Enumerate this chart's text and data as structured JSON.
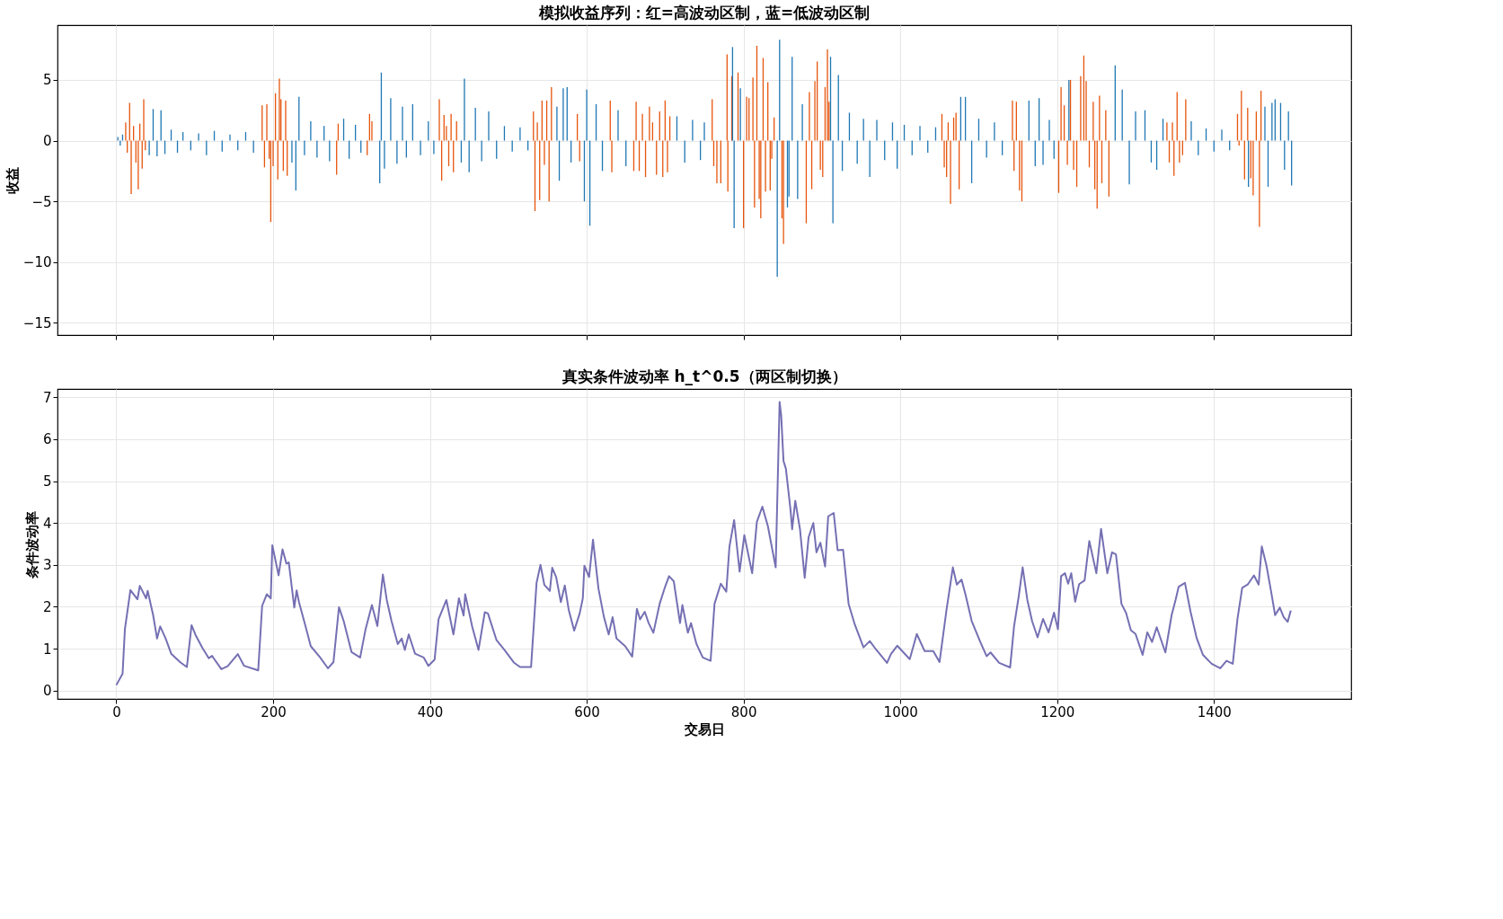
{
  "chart_data": [
    {
      "type": "bar",
      "title": "模拟收益序列：红=高波动区制，蓝=低波动区制",
      "ylabel": "收益",
      "xlim": [
        -75,
        1575
      ],
      "xticks": [
        0,
        200,
        400,
        600,
        800,
        1000,
        1200,
        1400
      ],
      "ylim": [
        -16,
        9.5
      ],
      "yticks": [
        -15,
        -10,
        -5,
        0,
        5
      ],
      "grid": true,
      "legend": false,
      "tick_labels": "y",
      "series": [
        {
          "color": "#e6550d",
          "x": [
            12,
            14,
            17,
            19,
            22,
            25,
            28,
            30,
            33,
            35,
            37,
            186,
            189,
            192,
            195,
            197,
            200,
            203,
            206,
            208,
            210,
            213,
            216,
            218,
            281,
            283,
            320,
            323,
            326,
            412,
            415,
            418,
            421,
            424,
            427,
            430,
            434,
            532,
            534,
            537,
            540,
            543,
            546,
            549,
            552,
            555,
            588,
            591,
            630,
            632,
            660,
            663,
            667,
            671,
            675,
            680,
            684,
            689,
            693,
            697,
            700,
            703,
            706,
            760,
            762,
            766,
            771,
            779,
            780,
            785,
            793,
            800,
            804,
            807,
            812,
            814,
            817,
            820,
            822,
            825,
            828,
            831,
            834,
            836,
            839,
            849,
            851,
            880,
            884,
            887,
            891,
            894,
            898,
            901,
            904,
            907,
            909,
            1053,
            1056,
            1059,
            1061,
            1064,
            1068,
            1071,
            1075,
            1143,
            1145,
            1148,
            1152,
            1155,
            1202,
            1205,
            1209,
            1213,
            1217,
            1221,
            1225,
            1230,
            1234,
            1237,
            1241,
            1246,
            1248,
            1251,
            1254,
            1257,
            1262,
            1266,
            1340,
            1343,
            1347,
            1349,
            1353,
            1356,
            1360,
            1364,
            1430,
            1432,
            1435,
            1439,
            1443,
            1447,
            1450,
            1454,
            1458,
            1460
          ],
          "values": [
            1.5,
            -1.0,
            3.1,
            -4.4,
            1.2,
            -1.8,
            -4.0,
            1.4,
            -2.3,
            3.4,
            -0.8,
            2.9,
            -2.2,
            3.0,
            -1.5,
            -6.7,
            -2.1,
            3.9,
            -3.2,
            5.1,
            3.4,
            -2.5,
            3.3,
            -2.9,
            -2.8,
            1.4,
            -1.2,
            2.2,
            1.6,
            3.4,
            -3.3,
            2.1,
            1.2,
            -2.1,
            2.2,
            -2.6,
            1.6,
            2.4,
            -5.8,
            1.5,
            -4.9,
            3.3,
            -2.0,
            3.3,
            -5.0,
            4.4,
            2.2,
            -1.7,
            3.3,
            -2.6,
            -2.5,
            3.2,
            -2.5,
            2.2,
            -3.0,
            2.8,
            1.5,
            -2.8,
            2.4,
            -3.0,
            3.3,
            -2.6,
            2.0,
            3.4,
            -2.1,
            -3.5,
            -3.5,
            7.1,
            -4.2,
            5.3,
            5.6,
            -7.2,
            3.6,
            3.5,
            5.2,
            -5.5,
            7.8,
            -4.8,
            -6.4,
            6.8,
            -4.2,
            4.8,
            -4.1,
            -1.5,
            1.9,
            -6.4,
            -8.5,
            -6.8,
            4.0,
            -4.0,
            4.9,
            6.5,
            -2.4,
            -3.0,
            4.4,
            7.5,
            3.2,
            2.2,
            -2.2,
            -3.0,
            1.5,
            -5.2,
            1.9,
            2.3,
            -4.0,
            3.3,
            -2.5,
            3.2,
            -4.1,
            -5.0,
            -4.3,
            4.4,
            2.9,
            -2.0,
            5.0,
            -2.4,
            -3.8,
            5.3,
            7.0,
            4.9,
            -2.2,
            3.2,
            -4.0,
            -5.6,
            3.7,
            -3.5,
            2.5,
            -4.6,
            1.5,
            -1.8,
            1.5,
            -2.9,
            4.0,
            -1.8,
            -1.2,
            3.4,
            2.2,
            -0.4,
            4.1,
            -3.2,
            2.7,
            -3.1,
            -4.5,
            2.4,
            -7.1,
            4.1
          ]
        },
        {
          "color": "#1f77b4",
          "x": [
            2,
            5,
            8,
            42,
            47,
            52,
            57,
            62,
            70,
            78,
            85,
            95,
            105,
            115,
            125,
            135,
            145,
            155,
            165,
            175,
            224,
            229,
            233,
            240,
            248,
            256,
            265,
            272,
            290,
            297,
            305,
            312,
            336,
            338,
            342,
            350,
            358,
            365,
            370,
            378,
            388,
            398,
            405,
            440,
            444,
            450,
            458,
            466,
            475,
            485,
            495,
            505,
            515,
            525,
            562,
            565,
            570,
            575,
            580,
            597,
            600,
            604,
            612,
            620,
            640,
            650,
            715,
            725,
            735,
            745,
            750,
            786,
            788,
            796,
            843,
            846,
            856,
            858,
            862,
            869,
            875,
            911,
            914,
            921,
            926,
            935,
            945,
            953,
            961,
            970,
            980,
            990,
            996,
            1005,
            1015,
            1025,
            1035,
            1045,
            1077,
            1083,
            1091,
            1100,
            1110,
            1120,
            1130,
            1164,
            1172,
            1177,
            1182,
            1190,
            1196,
            1215,
            1274,
            1283,
            1292,
            1300,
            1312,
            1320,
            1327,
            1335,
            1371,
            1380,
            1390,
            1400,
            1410,
            1420,
            1444,
            1465,
            1469,
            1474,
            1478,
            1485,
            1490,
            1495,
            1499
          ],
          "values": [
            0.3,
            -0.4,
            0.5,
            -1.2,
            2.6,
            -1.3,
            2.5,
            -1.1,
            0.9,
            -1.0,
            0.7,
            -0.8,
            0.6,
            -1.2,
            0.8,
            -0.9,
            0.5,
            -0.8,
            0.7,
            -1.0,
            -1.8,
            -4.1,
            3.6,
            -1.2,
            1.6,
            -1.4,
            1.2,
            -1.7,
            1.8,
            -1.5,
            1.3,
            -1.0,
            -3.5,
            5.6,
            -2.3,
            3.5,
            -1.9,
            2.8,
            -1.4,
            3.0,
            -1.2,
            1.6,
            -1.1,
            -1.8,
            5.1,
            -2.6,
            2.7,
            -1.7,
            2.4,
            -1.5,
            1.2,
            -0.9,
            1.1,
            -0.8,
            2.8,
            -3.3,
            4.3,
            4.4,
            -1.8,
            -5.0,
            4.2,
            -7.0,
            3.0,
            -2.5,
            2.5,
            -2.1,
            2.0,
            -1.8,
            1.7,
            -1.6,
            1.5,
            7.7,
            -7.2,
            4.3,
            -11.2,
            8.3,
            -5.5,
            -4.6,
            6.9,
            -4.8,
            3.0,
            6.9,
            -6.8,
            5.4,
            -2.5,
            2.3,
            -1.9,
            1.8,
            -3.0,
            1.7,
            -1.6,
            1.5,
            -2.3,
            1.3,
            -1.2,
            1.2,
            -1.0,
            1.1,
            3.6,
            3.6,
            -3.5,
            1.8,
            -1.4,
            1.5,
            -1.2,
            3.3,
            -2.1,
            3.5,
            -2.0,
            1.7,
            -1.5,
            5.0,
            6.2,
            4.2,
            -3.6,
            2.4,
            2.5,
            -1.8,
            -2.4,
            1.8,
            1.6,
            -1.2,
            1.0,
            -0.9,
            0.9,
            -0.8,
            -3.8,
            2.8,
            -3.8,
            3.1,
            3.4,
            3.1,
            -2.4,
            2.4,
            -3.7
          ]
        }
      ]
    },
    {
      "type": "line",
      "title": "真实条件波动率 h_t^0.5（两区制切换）",
      "xlabel": "交易日",
      "ylabel": "条件波动率",
      "xlim": [
        -75,
        1575
      ],
      "xticks": [
        0,
        200,
        400,
        600,
        800,
        1000,
        1200,
        1400
      ],
      "ylim": [
        -0.2,
        7.2
      ],
      "yticks": [
        0,
        1,
        2,
        3,
        4,
        5,
        6,
        7
      ],
      "grid": true,
      "legend": false,
      "marker": "none",
      "line_style": "solid",
      "series": [
        {
          "color": "#7570b3",
          "x": [
            0,
            8,
            11,
            18,
            27,
            30,
            38,
            40,
            47,
            52,
            56,
            63,
            70,
            82,
            90,
            96,
            101,
            110,
            118,
            122,
            134,
            142,
            155,
            163,
            181,
            186,
            192,
            197,
            199,
            207,
            212,
            217,
            220,
            227,
            230,
            233,
            241,
            248,
            260,
            270,
            277,
            284,
            290,
            300,
            311,
            318,
            326,
            333,
            340,
            345,
            351,
            359,
            364,
            368,
            373,
            381,
            392,
            398,
            406,
            411,
            421,
            430,
            437,
            443,
            445,
            454,
            462,
            470,
            474,
            485,
            495,
            507,
            515,
            529,
            536,
            541,
            546,
            553,
            556,
            561,
            567,
            572,
            577,
            584,
            591,
            595,
            597,
            603,
            608,
            615,
            622,
            628,
            633,
            638,
            649,
            658,
            664,
            668,
            674,
            679,
            685,
            693,
            700,
            705,
            711,
            719,
            722,
            729,
            733,
            740,
            748,
            758,
            763,
            771,
            778,
            782,
            788,
            795,
            801,
            811,
            817,
            824,
            831,
            841,
            846,
            848,
            851,
            854,
            860,
            862,
            866,
            872,
            878,
            883,
            889,
            893,
            898,
            904,
            908,
            915,
            920,
            927,
            934,
            942,
            953,
            961,
            969,
            983,
            988,
            996,
            1012,
            1021,
            1031,
            1042,
            1050,
            1059,
            1067,
            1072,
            1078,
            1083,
            1091,
            1102,
            1110,
            1115,
            1126,
            1140,
            1145,
            1151,
            1156,
            1162,
            1168,
            1175,
            1182,
            1189,
            1196,
            1201,
            1205,
            1210,
            1214,
            1218,
            1223,
            1228,
            1235,
            1241,
            1250,
            1256,
            1264,
            1270,
            1275,
            1282,
            1288,
            1294,
            1300,
            1309,
            1315,
            1321,
            1327,
            1338,
            1346,
            1351,
            1355,
            1363,
            1370,
            1378,
            1386,
            1397,
            1408,
            1416,
            1424,
            1430,
            1436,
            1443,
            1451,
            1457,
            1461,
            1467,
            1473,
            1478,
            1484,
            1489,
            1494,
            1498
          ],
          "values": [
            0.13,
            0.4,
            1.47,
            2.4,
            2.18,
            2.5,
            2.2,
            2.38,
            1.8,
            1.24,
            1.53,
            1.24,
            0.88,
            0.67,
            0.56,
            1.56,
            1.33,
            1.01,
            0.77,
            0.83,
            0.51,
            0.58,
            0.87,
            0.59,
            0.48,
            2.02,
            2.3,
            2.2,
            3.47,
            2.75,
            3.37,
            3.03,
            3.06,
            1.98,
            2.39,
            2.11,
            1.56,
            1.06,
            0.79,
            0.53,
            0.68,
            1.99,
            1.66,
            0.92,
            0.79,
            1.47,
            2.04,
            1.54,
            2.77,
            2.16,
            1.66,
            1.11,
            1.24,
            0.97,
            1.34,
            0.88,
            0.79,
            0.59,
            0.74,
            1.7,
            2.16,
            1.34,
            2.2,
            1.79,
            2.3,
            1.52,
            0.97,
            1.87,
            1.84,
            1.2,
            0.97,
            0.67,
            0.56,
            0.56,
            2.57,
            3.0,
            2.52,
            2.38,
            2.93,
            2.71,
            2.11,
            2.51,
            1.93,
            1.43,
            1.84,
            2.2,
            2.98,
            2.71,
            3.6,
            2.43,
            1.75,
            1.34,
            1.75,
            1.24,
            1.06,
            0.81,
            1.95,
            1.7,
            1.88,
            1.61,
            1.38,
            2.07,
            2.48,
            2.73,
            2.61,
            1.61,
            2.04,
            1.38,
            1.61,
            1.11,
            0.79,
            0.71,
            2.07,
            2.55,
            2.36,
            3.43,
            4.07,
            2.84,
            3.71,
            2.8,
            4.03,
            4.39,
            3.93,
            2.94,
            6.89,
            6.57,
            5.48,
            5.3,
            4.3,
            3.85,
            4.53,
            3.85,
            2.69,
            3.66,
            4.0,
            3.3,
            3.53,
            2.96,
            4.16,
            4.24,
            3.35,
            3.36,
            2.07,
            1.57,
            1.03,
            1.18,
            0.98,
            0.66,
            0.87,
            1.07,
            0.75,
            1.35,
            0.94,
            0.94,
            0.68,
            1.94,
            2.94,
            2.53,
            2.65,
            2.3,
            1.66,
            1.16,
            0.82,
            0.91,
            0.66,
            0.55,
            1.53,
            2.25,
            2.94,
            2.16,
            1.66,
            1.27,
            1.71,
            1.39,
            1.86,
            1.46,
            2.73,
            2.8,
            2.55,
            2.8,
            2.12,
            2.54,
            2.63,
            3.57,
            2.8,
            3.86,
            2.8,
            3.3,
            3.25,
            2.07,
            1.85,
            1.44,
            1.35,
            0.85,
            1.39,
            1.16,
            1.51,
            0.91,
            1.8,
            2.16,
            2.48,
            2.57,
            1.89,
            1.25,
            0.85,
            0.64,
            0.53,
            0.71,
            0.64,
            1.71,
            2.45,
            2.53,
            2.75,
            2.53,
            3.44,
            2.98,
            2.35,
            1.8,
            1.98,
            1.75,
            1.64,
            1.91
          ]
        }
      ]
    }
  ]
}
